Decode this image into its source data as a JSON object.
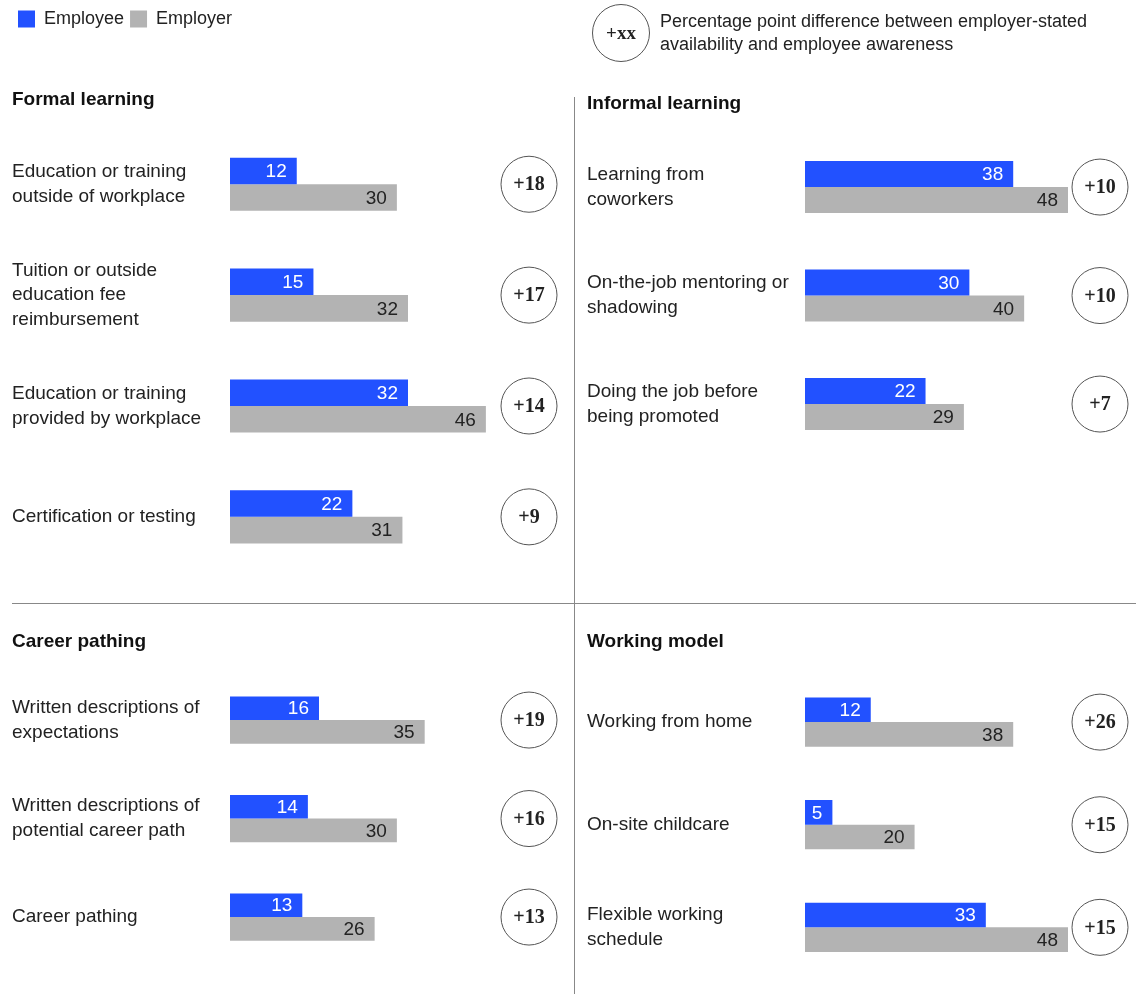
{
  "chart_data": [
    {
      "type": "bar",
      "orientation": "horizontal",
      "title": "Formal learning",
      "legend": "top left",
      "tick_labels": "y",
      "data_labels": true,
      "categories": [
        "Education or training outside of workplace",
        "Tuition or outside education fee reimbursement",
        "Education or training provided by workplace",
        "Certification or testing"
      ],
      "series": [
        {
          "name": "Employee",
          "color": "#2251ff",
          "values": [
            12,
            15,
            32,
            22
          ]
        },
        {
          "name": "Employer",
          "color": "#b3b3b3",
          "values": [
            30,
            32,
            46,
            31
          ]
        }
      ],
      "annotations": [
        "+xx",
        "Percentage point difference between employer-stated availability and employee awareness",
        "+18",
        "+17",
        "+14",
        "+9"
      ]
    },
    {
      "type": "bar",
      "orientation": "horizontal",
      "title": "Informal learning",
      "tick_labels": "y",
      "data_labels": true,
      "categories": [
        "Learning from coworkers",
        "On-the-job mentoring or shadowing",
        "Doing the job before being promoted"
      ],
      "series": [
        {
          "color": "#2251ff",
          "values": [
            38,
            30,
            22
          ]
        },
        {
          "color": "#b3b3b3",
          "values": [
            48,
            40,
            29
          ]
        }
      ],
      "annotations": [
        "+10",
        "+10",
        "+7"
      ]
    },
    {
      "type": "bar",
      "orientation": "horizontal",
      "title": "Career pathing",
      "tick_labels": "y",
      "data_labels": true,
      "categories": [
        "Written descriptions of expectations",
        "Written descriptions of potential career path",
        "Career pathing"
      ],
      "series": [
        {
          "color": "#2251ff",
          "values": [
            16,
            14,
            13
          ]
        },
        {
          "color": "#b3b3b3",
          "values": [
            35,
            30,
            26
          ]
        }
      ],
      "annotations": [
        "+19",
        "+16",
        "+13"
      ]
    },
    {
      "type": "bar",
      "orientation": "horizontal",
      "title": "Working model",
      "tick_labels": "y",
      "data_labels": true,
      "categories": [
        "Working from home",
        "On-site childcare",
        "Flexible working schedule"
      ],
      "series": [
        {
          "color": "#2251ff",
          "values": [
            12,
            5,
            33
          ]
        },
        {
          "color": "#b3b3b3",
          "values": [
            38,
            20,
            48
          ]
        }
      ],
      "annotations": [
        "+26",
        "+15",
        "+15"
      ]
    }
  ]
}
